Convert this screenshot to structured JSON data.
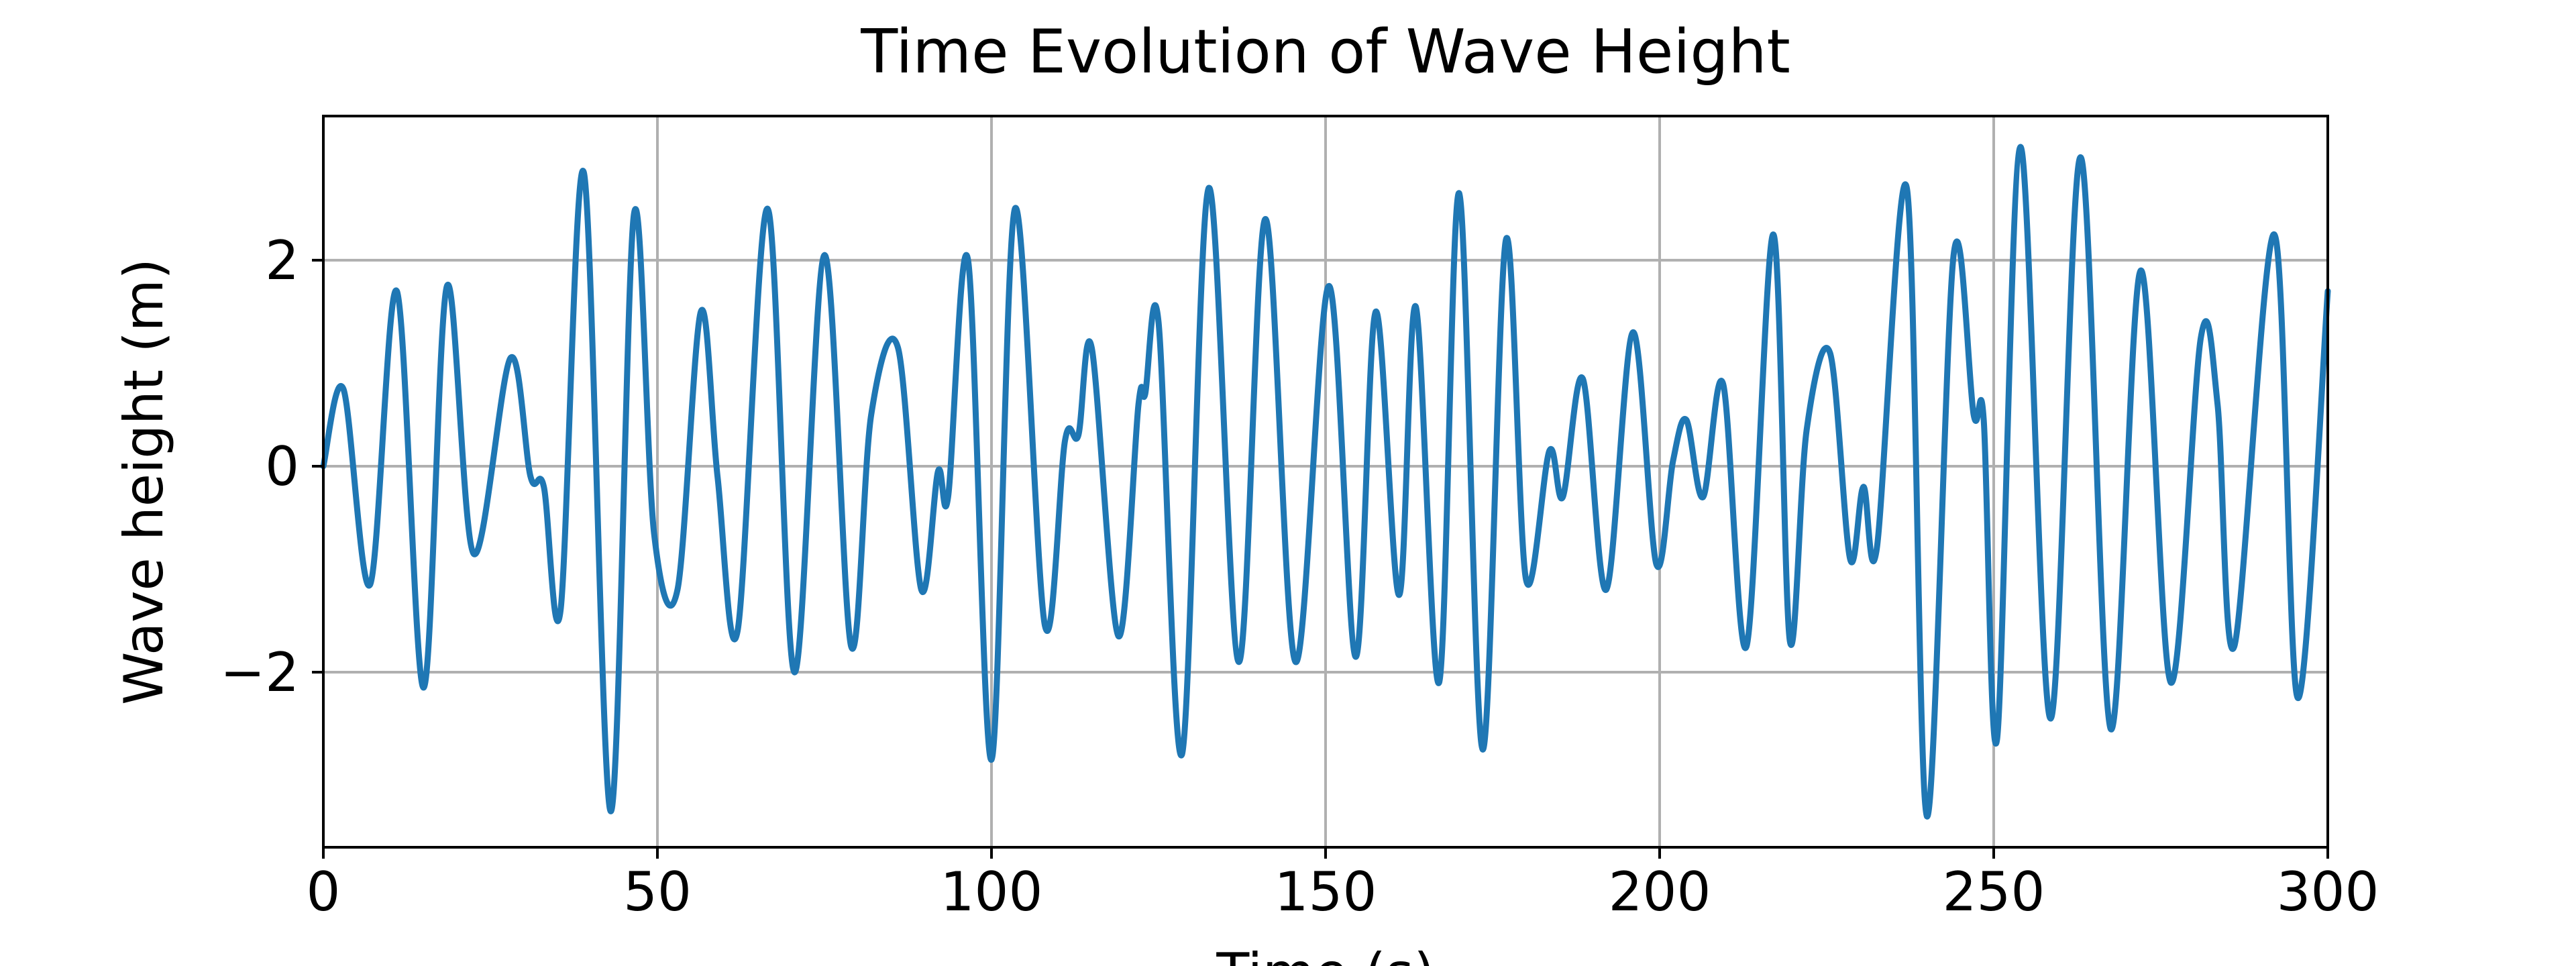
{
  "chart_data": {
    "type": "line",
    "title": "Time Evolution of Wave Height",
    "xlabel": "Time (s)",
    "ylabel": "Wave height (m)",
    "xlim": [
      0,
      300
    ],
    "ylim": [
      -3.7,
      3.4
    ],
    "grid": true,
    "line_color": "#1f77b4",
    "grid_color": "#b0b0b0",
    "x_ticks": [
      {
        "value": 0,
        "label": "0"
      },
      {
        "value": 50,
        "label": "50"
      },
      {
        "value": 100,
        "label": "100"
      },
      {
        "value": 150,
        "label": "150"
      },
      {
        "value": 200,
        "label": "200"
      },
      {
        "value": 250,
        "label": "250"
      },
      {
        "value": 300,
        "label": "300"
      }
    ],
    "y_ticks": [
      {
        "value": -2,
        "label": "−2"
      },
      {
        "value": 0,
        "label": "0"
      },
      {
        "value": 2,
        "label": "2"
      }
    ],
    "series": [
      {
        "x": [
          0,
          3,
          7,
          11,
          15,
          18.5,
          22.5,
          28,
          31,
          33,
          35.5,
          39,
          43,
          46.5,
          49.5,
          53,
          56.5,
          59,
          62,
          66.5,
          70.5,
          75,
          79,
          82,
          86,
          89.5,
          92,
          93.5,
          96.5,
          100,
          103.5,
          108,
          111,
          113,
          115,
          119,
          122,
          123,
          125,
          128.5,
          132.5,
          137,
          141,
          145.5,
          150.5,
          154.5,
          157.5,
          161,
          163.5,
          167,
          170,
          173.5,
          177,
          180,
          183.5,
          185.5,
          188.5,
          192,
          196,
          199.5,
          202,
          204,
          206.5,
          209.5,
          213,
          217,
          219.5,
          222,
          225.5,
          228.5,
          230.5,
          232.5,
          237,
          240,
          244,
          247,
          248.5,
          250.5,
          254,
          258.5,
          263,
          267.5,
          272,
          276.5,
          281,
          283.5,
          286,
          292,
          295.5,
          300
        ],
        "y": [
          0,
          0.75,
          -1.15,
          1.7,
          -2.15,
          1.75,
          -0.85,
          1.05,
          -0.1,
          -0.2,
          -1.4,
          2.85,
          -3.35,
          2.45,
          -0.65,
          -1.2,
          1.5,
          -0.1,
          -1.6,
          2.5,
          -2.0,
          2.05,
          -1.75,
          0.5,
          1.15,
          -1.2,
          -0.05,
          -0.3,
          2.0,
          -2.85,
          2.5,
          -1.55,
          0.25,
          0.3,
          1.15,
          -1.65,
          0.6,
          0.7,
          1.4,
          -2.8,
          2.7,
          -1.9,
          2.4,
          -1.9,
          1.75,
          -1.85,
          1.5,
          -1.25,
          1.55,
          -2.1,
          2.65,
          -2.75,
          2.2,
          -1.1,
          0.15,
          -0.3,
          0.85,
          -1.2,
          1.3,
          -0.95,
          0.05,
          0.45,
          -0.3,
          0.8,
          -1.75,
          2.25,
          -1.7,
          0.35,
          1.1,
          -0.9,
          -0.2,
          -0.8,
          2.7,
          -3.4,
          2.05,
          0.5,
          0.45,
          -2.65,
          3.1,
          -2.45,
          3.0,
          -2.55,
          1.9,
          -2.1,
          1.25,
          0.6,
          -1.75,
          2.25,
          -2.25,
          1.7
        ]
      }
    ]
  }
}
